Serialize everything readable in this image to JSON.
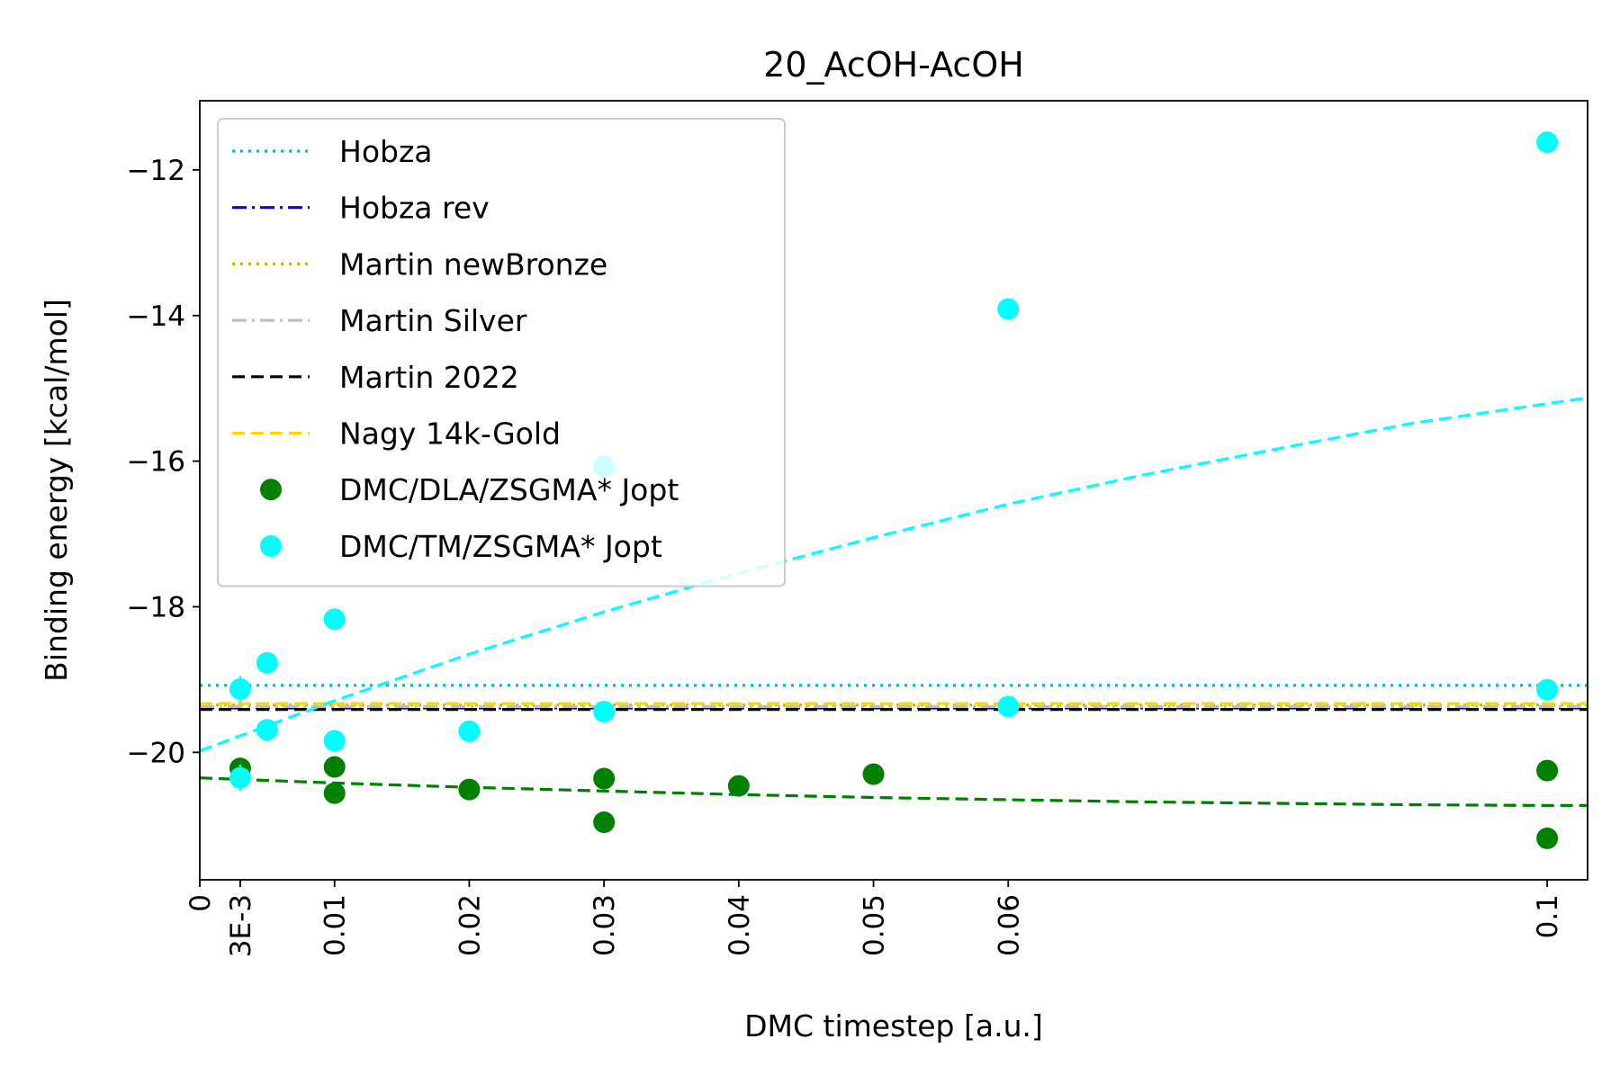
{
  "chart_data": {
    "type": "scatter",
    "title": "20_AcOH-AcOH",
    "xlabel": "DMC timestep [a.u.]",
    "ylabel": "Binding energy [kcal/mol]",
    "xlim": [
      0,
      0.103
    ],
    "ylim": [
      -21.75,
      -11.05
    ],
    "x_ticks": [
      {
        "value": 0,
        "label": "0"
      },
      {
        "value": 0.003,
        "label": "3E-3"
      },
      {
        "value": 0.01,
        "label": "0.01"
      },
      {
        "value": 0.02,
        "label": "0.02"
      },
      {
        "value": 0.03,
        "label": "0.03"
      },
      {
        "value": 0.04,
        "label": "0.04"
      },
      {
        "value": 0.05,
        "label": "0.05"
      },
      {
        "value": 0.06,
        "label": "0.06"
      },
      {
        "value": 0.1,
        "label": "0.1"
      }
    ],
    "y_ticks": [
      {
        "value": -12,
        "label": "−12"
      },
      {
        "value": -14,
        "label": "−14"
      },
      {
        "value": -16,
        "label": "−16"
      },
      {
        "value": -18,
        "label": "−18"
      },
      {
        "value": -20,
        "label": "−20"
      }
    ],
    "grid": false,
    "legend_position": "upper-left",
    "reference_lines": [
      {
        "name": "Hobza",
        "y": -19.08,
        "color": "#00bfbf",
        "style": "dotted"
      },
      {
        "name": "Hobza rev",
        "y": -19.39,
        "color": "#0000ff",
        "style": "dashdot"
      },
      {
        "name": "Martin newBronze",
        "y": -19.35,
        "color": "#bfbf00",
        "style": "dotted"
      },
      {
        "name": "Martin Silver",
        "y": -19.37,
        "color": "#c0c0c0",
        "style": "dashdot"
      },
      {
        "name": "Martin 2022",
        "y": -19.41,
        "color": "#000000",
        "style": "dashed"
      },
      {
        "name": "Nagy 14k-Gold",
        "y": -19.33,
        "color": "#ffd700",
        "style": "dashed"
      }
    ],
    "series": [
      {
        "name": "DMC/DLA/ZSGMA* Jopt",
        "color": "#008000",
        "points": [
          {
            "x": 0.003,
            "y": -20.22
          },
          {
            "x": 0.01,
            "y": -20.2
          },
          {
            "x": 0.01,
            "y": -20.56
          },
          {
            "x": 0.02,
            "y": -20.51
          },
          {
            "x": 0.03,
            "y": -20.36
          },
          {
            "x": 0.03,
            "y": -20.96
          },
          {
            "x": 0.04,
            "y": -20.46
          },
          {
            "x": 0.05,
            "y": -20.3
          },
          {
            "x": 0.1,
            "y": -20.25
          },
          {
            "x": 0.1,
            "y": -21.18
          }
        ],
        "fit": [
          {
            "x": 0.0,
            "y": -20.35
          },
          {
            "x": 0.01,
            "y": -20.42
          },
          {
            "x": 0.02,
            "y": -20.48
          },
          {
            "x": 0.03,
            "y": -20.53
          },
          {
            "x": 0.04,
            "y": -20.58
          },
          {
            "x": 0.05,
            "y": -20.62
          },
          {
            "x": 0.06,
            "y": -20.65
          },
          {
            "x": 0.07,
            "y": -20.68
          },
          {
            "x": 0.08,
            "y": -20.7
          },
          {
            "x": 0.09,
            "y": -20.72
          },
          {
            "x": 0.1,
            "y": -20.73
          },
          {
            "x": 0.103,
            "y": -20.73
          }
        ]
      },
      {
        "name": "DMC/TM/ZSGMA* Jopt",
        "color": "#00ffff",
        "points": [
          {
            "x": 0.003,
            "y": -19.13,
            "yerr": 0.18
          },
          {
            "x": 0.003,
            "y": -20.35,
            "yerr": 0.18
          },
          {
            "x": 0.005,
            "y": -18.77
          },
          {
            "x": 0.005,
            "y": -19.69
          },
          {
            "x": 0.01,
            "y": -18.17
          },
          {
            "x": 0.01,
            "y": -19.84
          },
          {
            "x": 0.02,
            "y": -19.71
          },
          {
            "x": 0.03,
            "y": -16.07
          },
          {
            "x": 0.03,
            "y": -19.44
          },
          {
            "x": 0.06,
            "y": -13.91
          },
          {
            "x": 0.06,
            "y": -19.37
          },
          {
            "x": 0.1,
            "y": -11.62
          },
          {
            "x": 0.1,
            "y": -19.14
          }
        ],
        "fit": [
          {
            "x": 0.0,
            "y": -19.98
          },
          {
            "x": 0.01,
            "y": -19.29
          },
          {
            "x": 0.02,
            "y": -18.65
          },
          {
            "x": 0.03,
            "y": -18.07
          },
          {
            "x": 0.04,
            "y": -17.54
          },
          {
            "x": 0.05,
            "y": -17.05
          },
          {
            "x": 0.06,
            "y": -16.59
          },
          {
            "x": 0.07,
            "y": -16.19
          },
          {
            "x": 0.08,
            "y": -15.83
          },
          {
            "x": 0.09,
            "y": -15.48
          },
          {
            "x": 0.1,
            "y": -15.21
          },
          {
            "x": 0.103,
            "y": -15.13
          }
        ]
      }
    ]
  }
}
